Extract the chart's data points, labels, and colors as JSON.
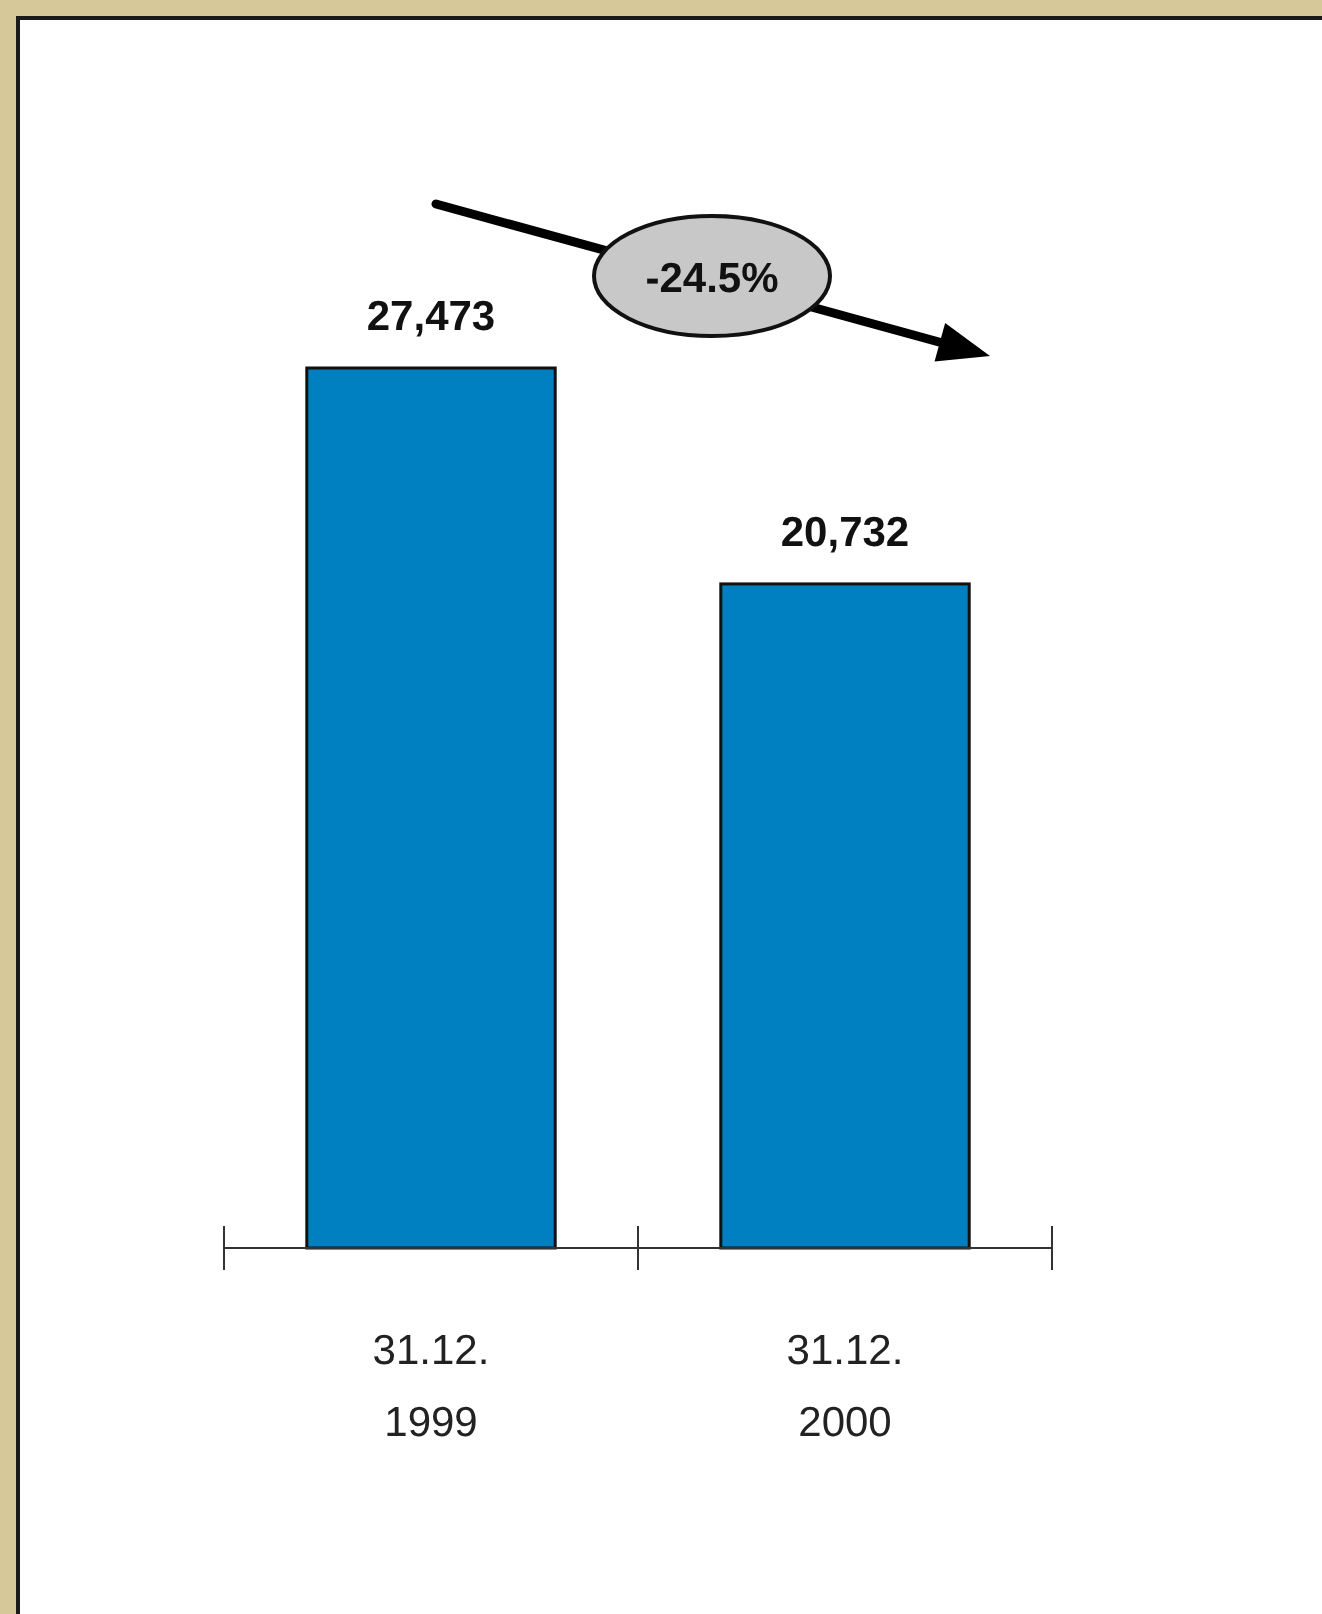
{
  "chart_data": {
    "type": "bar",
    "categories": [
      "31.12.\n1999",
      "31.12.\n2000"
    ],
    "values": [
      27473,
      20732
    ],
    "color": "#0080c0",
    "value_labels": [
      "27,473",
      "20,732"
    ],
    "annotations": [
      "-24.5%"
    ]
  }
}
